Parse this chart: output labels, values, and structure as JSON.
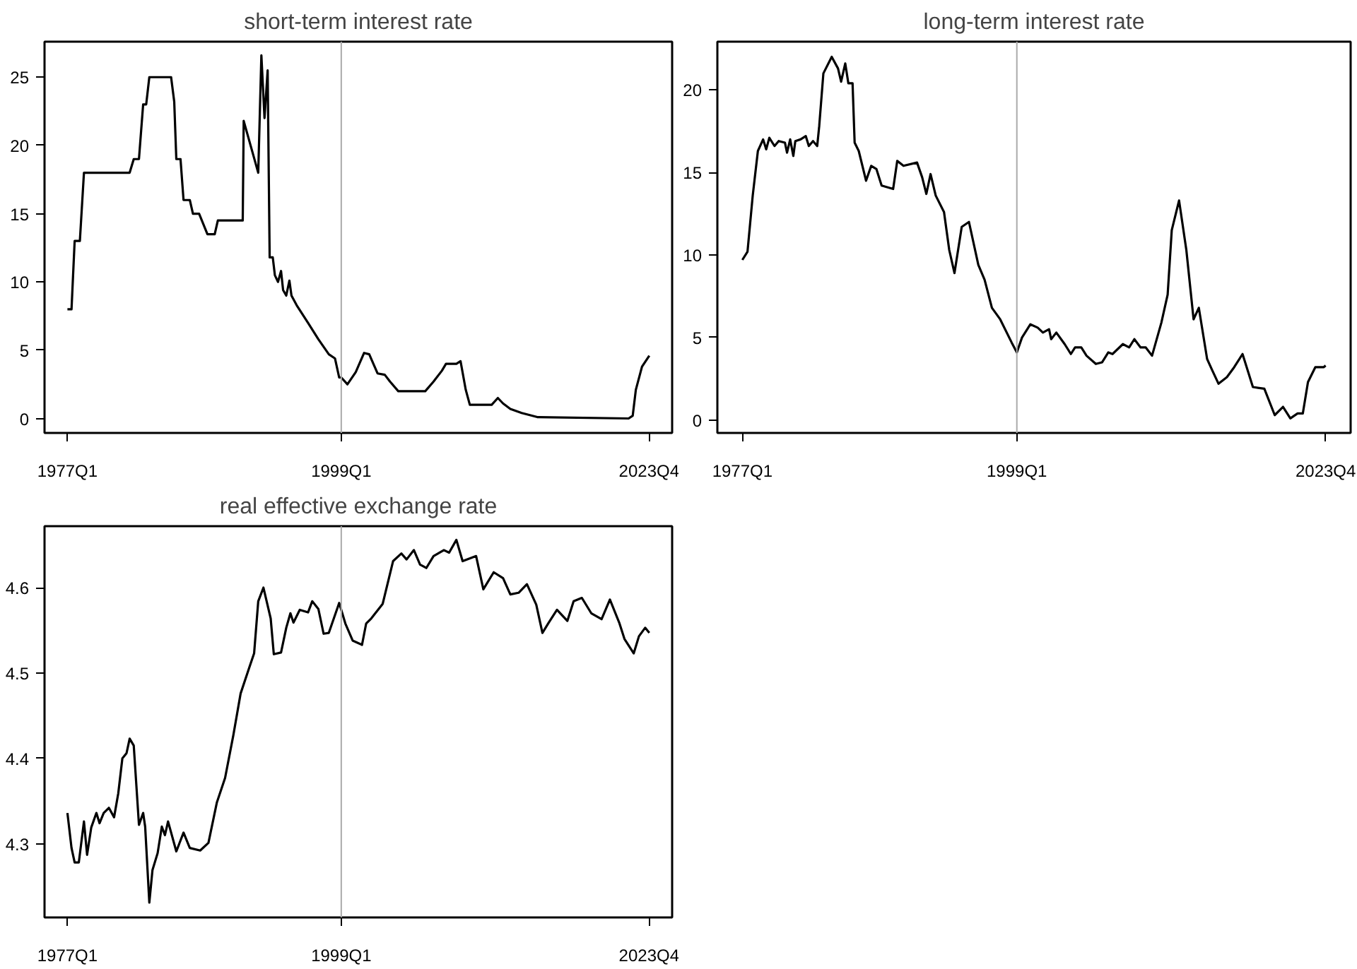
{
  "chart_data": [
    {
      "type": "line",
      "title": "short-term interest rate",
      "xlim": [
        "1975-03",
        "2025-08"
      ],
      "ylim": [
        -1.06,
        27.6
      ],
      "xticks": [
        {
          "value": "1977-01",
          "label": "1977Q1"
        },
        {
          "value": "1999-01",
          "label": "1999Q1"
        },
        {
          "value": "2023-10",
          "label": "2023Q4"
        }
      ],
      "yticks": [
        0,
        5,
        10,
        15,
        20,
        25
      ],
      "grid": false,
      "ref_lines": [
        {
          "axis": "x",
          "value": "1999-01",
          "color": "#aaaaaa"
        }
      ],
      "x": [
        "1977-01",
        "1977-05",
        "1977-08",
        "1978-01",
        "1978-05",
        "1982-01",
        "1982-05",
        "1982-10",
        "1983-02",
        "1983-05",
        "1983-08",
        "1985-05",
        "1985-08",
        "1985-10",
        "1986-02",
        "1986-05",
        "1986-11",
        "1987-02",
        "1987-08",
        "1988-04",
        "1988-11",
        "1989-02",
        "1991-02",
        "1991-03",
        "1992-05",
        "1992-08",
        "1992-11",
        "1993-02",
        "1993-04",
        "1993-07",
        "1993-09",
        "1993-12",
        "1994-03",
        "1994-05",
        "1994-08",
        "1994-11",
        "1995-01",
        "1995-06",
        "1996-05",
        "1997-03",
        "1998-01",
        "1998-07",
        "1998-11",
        "1999-01",
        "1999-07",
        "2000-03",
        "2000-11",
        "2001-04",
        "2001-12",
        "2002-07",
        "2002-12",
        "2003-08",
        "2005-10",
        "2006-06",
        "2007-02",
        "2007-06",
        "2008-04",
        "2008-08",
        "2009-01",
        "2009-05",
        "2011-02",
        "2011-08",
        "2012-01",
        "2012-08",
        "2013-07",
        "2014-10",
        "2022-02",
        "2022-06",
        "2022-09",
        "2023-03",
        "2023-10"
      ],
      "series": [
        {
          "color": "#000000",
          "values": [
            8.0,
            8.0,
            13,
            13,
            18,
            18,
            19,
            19,
            23,
            23,
            25,
            25,
            23.2,
            19,
            19,
            16,
            16,
            15,
            15,
            13.5,
            13.5,
            14.5,
            14.5,
            21.8,
            18,
            26.6,
            22,
            25.5,
            11.8,
            11.8,
            10.5,
            10,
            10.8,
            9.4,
            9,
            10.1,
            9,
            8.3,
            7,
            5.8,
            4.7,
            4.4,
            3.0,
            3.0,
            2.5,
            3.4,
            4.8,
            4.7,
            3.3,
            3.2,
            2.7,
            2.0,
            2.0,
            2.7,
            3.5,
            4.0,
            4.0,
            4.2,
            2.1,
            1.0,
            1.0,
            1.5,
            1.1,
            0.7,
            0.4,
            0.1,
            0,
            0.2,
            2.1,
            3.8,
            4.6
          ]
        }
      ]
    },
    {
      "type": "line",
      "title": "long-term interest rate",
      "xlim": [
        "1975-01",
        "2025-10"
      ],
      "ylim": [
        -0.78,
        22.92
      ],
      "xticks": [
        {
          "value": "1977-01",
          "label": "1977Q1"
        },
        {
          "value": "1999-01",
          "label": "1999Q1"
        },
        {
          "value": "2023-10",
          "label": "2023Q4"
        }
      ],
      "yticks": [
        0,
        5,
        10,
        15,
        20
      ],
      "grid": false,
      "ref_lines": [
        {
          "axis": "x",
          "value": "1999-01",
          "color": "#aaaaaa"
        }
      ],
      "x": [
        "1977-01",
        "1977-06",
        "1977-11",
        "1978-04",
        "1978-09",
        "1978-12",
        "1979-03",
        "1979-08",
        "1979-12",
        "1980-06",
        "1980-08",
        "1980-11",
        "1981-02",
        "1981-04",
        "1981-09",
        "1982-02",
        "1982-05",
        "1982-09",
        "1983-01",
        "1983-03",
        "1983-07",
        "1984-03",
        "1984-09",
        "1984-12",
        "1985-04",
        "1985-07",
        "1985-11",
        "1986-01",
        "1986-05",
        "1986-12",
        "1987-05",
        "1987-10",
        "1988-03",
        "1989-02",
        "1989-06",
        "1989-12",
        "1991-01",
        "1991-06",
        "1991-10",
        "1992-02",
        "1992-07",
        "1993-03",
        "1993-08",
        "1994-01",
        "1994-08",
        "1995-03",
        "1995-12",
        "1996-06",
        "1997-01",
        "1997-09",
        "1998-08",
        "1999-01",
        "1999-06",
        "2000-02",
        "2000-09",
        "2001-02",
        "2001-08",
        "2001-10",
        "2002-03",
        "2002-11",
        "2003-05",
        "2003-09",
        "2004-03",
        "2004-08",
        "2005-05",
        "2005-11",
        "2006-05",
        "2006-09",
        "2007-07",
        "2008-01",
        "2008-06",
        "2008-12",
        "2009-05",
        "2009-11",
        "2010-08",
        "2011-02",
        "2011-06",
        "2012-01",
        "2012-08",
        "2013-03",
        "2013-08",
        "2014-04",
        "2014-09",
        "2015-03",
        "2015-11",
        "2016-06",
        "2017-02",
        "2017-12",
        "2018-11",
        "2019-09",
        "2020-05",
        "2020-12",
        "2021-07",
        "2021-12",
        "2022-05",
        "2022-12",
        "2023-08",
        "2023-10"
      ],
      "series": [
        {
          "color": "#000000",
          "values": [
            9.7,
            10.2,
            13.6,
            16.3,
            17.0,
            16.4,
            17.1,
            16.6,
            16.9,
            16.8,
            16.2,
            17.0,
            16.0,
            16.9,
            17.0,
            17.2,
            16.6,
            16.9,
            16.6,
            17.8,
            21.0,
            22.0,
            21.3,
            20.5,
            21.6,
            20.4,
            20.4,
            16.8,
            16.3,
            14.5,
            15.4,
            15.2,
            14.2,
            14.0,
            15.7,
            15.4,
            15.6,
            14.7,
            13.7,
            14.9,
            13.6,
            12.6,
            10.3,
            8.9,
            11.7,
            12.0,
            9.4,
            8.5,
            6.8,
            6.1,
            4.7,
            4.1,
            5.0,
            5.8,
            5.6,
            5.3,
            5.5,
            4.9,
            5.3,
            4.6,
            4.0,
            4.4,
            4.4,
            3.9,
            3.4,
            3.5,
            4.1,
            4.0,
            4.6,
            4.4,
            4.9,
            4.4,
            4.4,
            3.9,
            5.9,
            7.6,
            11.5,
            13.3,
            10.3,
            6.1,
            6.8,
            3.7,
            3.0,
            2.2,
            2.6,
            3.2,
            4.0,
            2.0,
            1.9,
            0.3,
            0.8,
            0.1,
            0.4,
            0.4,
            2.3,
            3.2,
            3.2,
            3.3
          ]
        }
      ]
    },
    {
      "type": "line",
      "title": "real effective exchange rate",
      "xlim": [
        "1975-03",
        "2025-08"
      ],
      "ylim": [
        4.2136,
        4.672
      ],
      "xticks": [
        {
          "value": "1977-01",
          "label": "1977Q1"
        },
        {
          "value": "1999-01",
          "label": "1999Q1"
        },
        {
          "value": "2023-10",
          "label": "2023Q4"
        }
      ],
      "yticks": [
        4.3,
        4.4,
        4.5,
        4.6
      ],
      "grid": false,
      "ref_lines": [
        {
          "axis": "x",
          "value": "1999-01",
          "color": "#aaaaaa"
        }
      ],
      "x": [
        "1977-01",
        "1977-05",
        "1977-08",
        "1977-12",
        "1978-05",
        "1978-08",
        "1978-12",
        "1979-05",
        "1979-08",
        "1979-12",
        "1980-05",
        "1980-10",
        "1981-02",
        "1981-06",
        "1981-10",
        "1982-01",
        "1982-05",
        "1982-10",
        "1983-02",
        "1983-04",
        "1983-08",
        "1983-11",
        "1984-04",
        "1984-08",
        "1984-11",
        "1985-02",
        "1985-10",
        "1986-05",
        "1986-11",
        "1987-09",
        "1988-05",
        "1989-01",
        "1989-09",
        "1990-05",
        "1990-12",
        "1991-08",
        "1992-01",
        "1992-05",
        "1992-10",
        "1993-05",
        "1993-08",
        "1994-03",
        "1994-08",
        "1994-12",
        "1995-03",
        "1995-09",
        "1996-05",
        "1996-09",
        "1997-03",
        "1997-08",
        "1998-01",
        "1998-11",
        "1999-05",
        "1999-12",
        "2000-09",
        "2001-01",
        "2001-06",
        "2002-05",
        "2003-03",
        "2003-11",
        "2004-04",
        "2004-11",
        "2005-05",
        "2005-11",
        "2006-06",
        "2007-04",
        "2007-09",
        "2008-04",
        "2008-10",
        "2009-11",
        "2010-06",
        "2011-04",
        "2012-01",
        "2012-08",
        "2013-04",
        "2013-12",
        "2014-09",
        "2015-03",
        "2015-09",
        "2016-05",
        "2017-03",
        "2017-09",
        "2018-05",
        "2019-02",
        "2019-12",
        "2020-08",
        "2021-05",
        "2021-10",
        "2022-07",
        "2022-12",
        "2023-06",
        "2023-10"
      ],
      "series": [
        {
          "color": "#000000",
          "values": [
            4.336,
            4.295,
            4.278,
            4.278,
            4.326,
            4.287,
            4.319,
            4.336,
            4.324,
            4.336,
            4.342,
            4.331,
            4.359,
            4.4,
            4.406,
            4.423,
            4.415,
            4.322,
            4.336,
            4.32,
            4.231,
            4.269,
            4.289,
            4.32,
            4.31,
            4.326,
            4.291,
            4.313,
            4.295,
            4.292,
            4.301,
            4.348,
            4.377,
            4.427,
            4.476,
            4.505,
            4.523,
            4.584,
            4.6,
            4.564,
            4.522,
            4.524,
            4.553,
            4.57,
            4.559,
            4.574,
            4.571,
            4.584,
            4.575,
            4.546,
            4.547,
            4.582,
            4.558,
            4.538,
            4.533,
            4.558,
            4.564,
            4.581,
            4.631,
            4.64,
            4.633,
            4.644,
            4.627,
            4.623,
            4.637,
            4.644,
            4.641,
            4.656,
            4.631,
            4.637,
            4.598,
            4.618,
            4.611,
            4.592,
            4.594,
            4.604,
            4.58,
            4.547,
            4.559,
            4.574,
            4.561,
            4.584,
            4.588,
            4.57,
            4.563,
            4.586,
            4.559,
            4.54,
            4.523,
            4.543,
            4.553,
            4.547
          ]
        }
      ]
    }
  ]
}
